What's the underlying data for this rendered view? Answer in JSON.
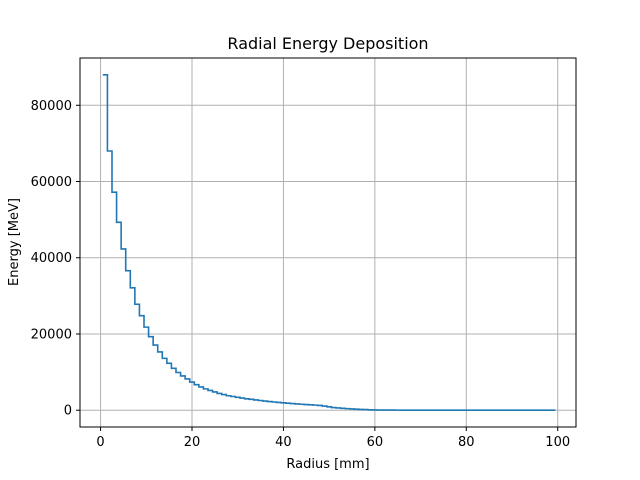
{
  "chart_data": {
    "type": "line",
    "drawstyle": "steps",
    "title": "Radial Energy Deposition",
    "xlabel": "Radius [mm]",
    "ylabel": "Energy [MeV]",
    "xlim": [
      -4.5,
      104.0
    ],
    "ylim": [
      -4400,
      92400
    ],
    "xticks": [
      0,
      20,
      40,
      60,
      80,
      100
    ],
    "yticks": [
      0,
      20000,
      40000,
      60000,
      80000
    ],
    "xtick_labels": [
      "0",
      "20",
      "40",
      "60",
      "80",
      "100"
    ],
    "ytick_labels": [
      "0",
      "20000",
      "40000",
      "60000",
      "80000"
    ],
    "grid": true,
    "color": "#1f77b4",
    "series": [
      {
        "x": [
          0.5,
          1.5,
          2.5,
          3.5,
          4.5,
          5.5,
          6.5,
          7.5,
          8.5,
          9.5,
          10.5,
          11.5,
          12.5,
          13.5,
          14.5,
          15.5,
          16.5,
          17.5,
          18.5,
          19.5,
          20.5,
          21.5,
          22.5,
          23.5,
          24.5,
          25.5,
          26.5,
          27.5,
          28.5,
          29.5,
          30.5,
          31.5,
          32.5,
          33.5,
          34.5,
          35.5,
          36.5,
          37.5,
          38.5,
          39.5,
          40.5,
          41.5,
          42.5,
          43.5,
          44.5,
          45.5,
          46.5,
          47.5,
          48.5,
          49.5,
          50.5,
          51.5,
          52.5,
          53.5,
          54.5,
          55.5,
          56.5,
          57.5,
          58.5,
          59.5,
          60.5,
          61.5,
          62.5,
          63.5,
          64.5,
          65.5,
          66.5,
          67.5,
          68.5,
          69.5,
          70.5,
          71.5,
          72.5,
          73.5,
          74.5,
          75.5,
          76.5,
          77.5,
          78.5,
          79.5,
          80.5,
          81.5,
          82.5,
          83.5,
          84.5,
          85.5,
          86.5,
          87.5,
          88.5,
          89.5,
          90.5,
          91.5,
          92.5,
          93.5,
          94.5,
          95.5,
          96.5,
          97.5,
          98.5,
          99.5
        ],
        "values": [
          88000,
          68000,
          57200,
          49300,
          42300,
          36600,
          32100,
          27800,
          24800,
          21800,
          19300,
          17100,
          15300,
          13600,
          12300,
          11000,
          9900,
          9000,
          8200,
          7400,
          6700,
          6100,
          5600,
          5200,
          4800,
          4400,
          4100,
          3800,
          3600,
          3400,
          3200,
          3000,
          2850,
          2700,
          2550,
          2400,
          2280,
          2160,
          2050,
          1950,
          1850,
          1750,
          1660,
          1570,
          1490,
          1410,
          1340,
          1270,
          1100,
          900,
          700,
          600,
          500,
          420,
          350,
          280,
          220,
          170,
          120,
          80,
          50,
          40,
          35,
          30,
          25,
          22,
          20,
          18,
          16,
          14,
          12,
          10,
          9,
          8,
          7,
          6,
          5,
          5,
          4,
          4,
          3,
          3,
          3,
          2,
          2,
          2,
          2,
          1,
          1,
          1,
          1,
          1,
          1,
          1,
          1,
          1,
          1,
          1,
          1,
          1
        ]
      }
    ]
  }
}
